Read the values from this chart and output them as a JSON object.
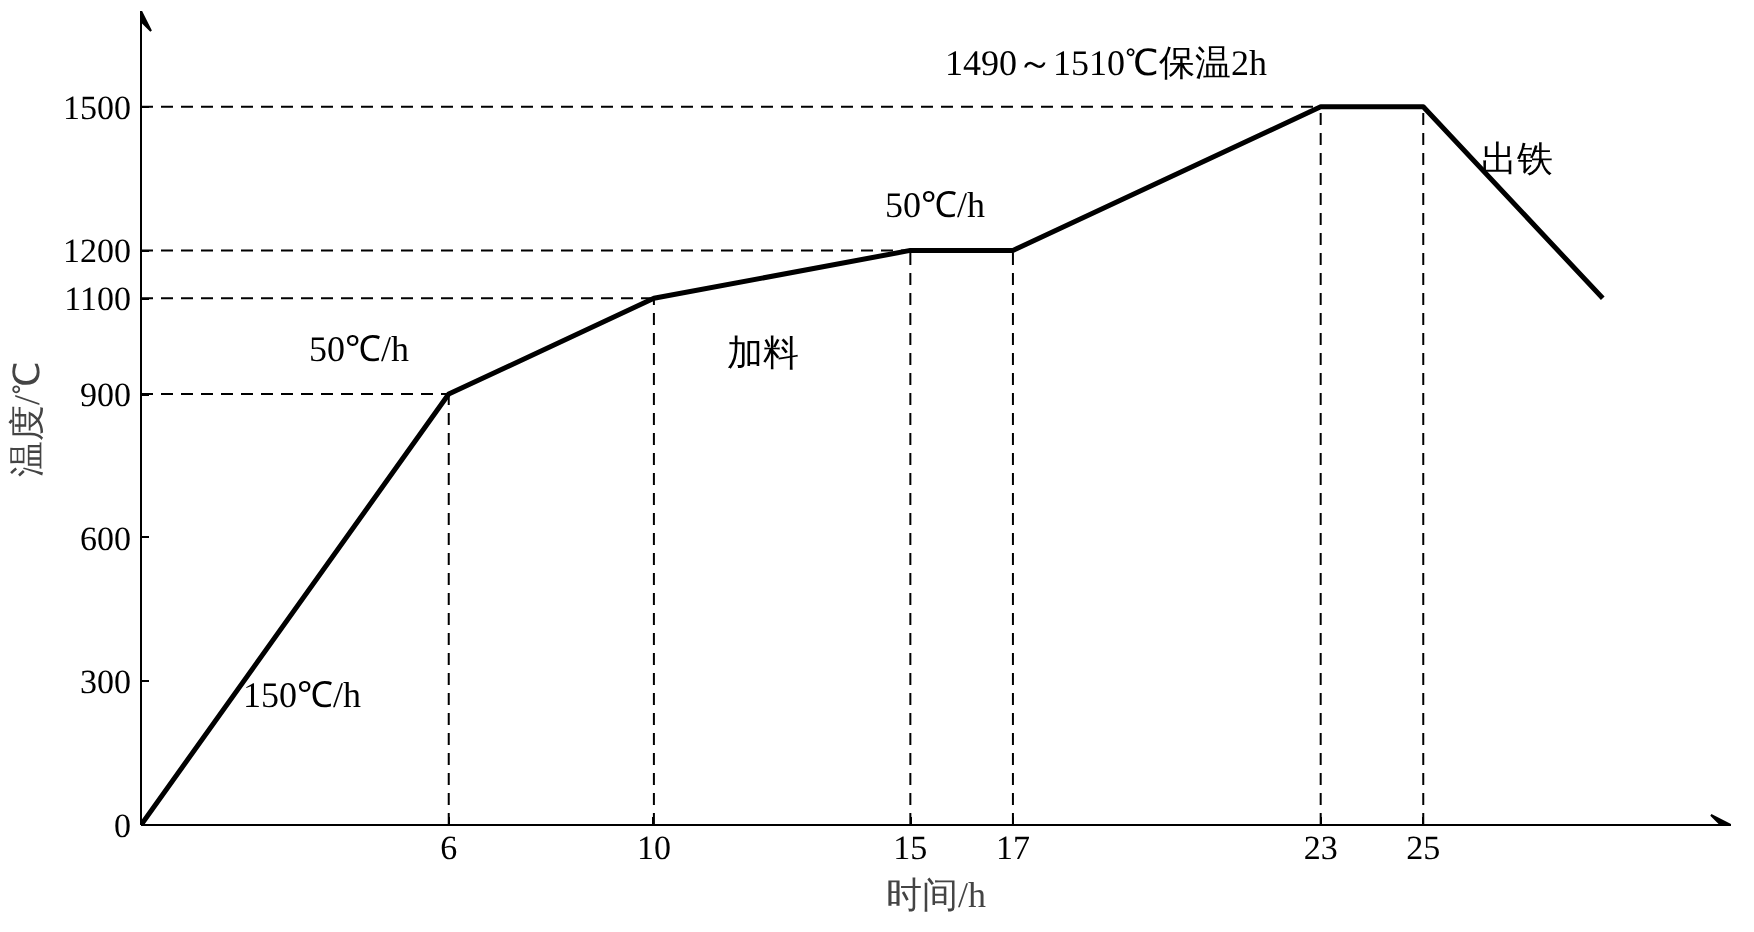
{
  "chart_data": {
    "type": "line",
    "xlabel": "时间/h",
    "ylabel": "温度/℃",
    "x": [
      0,
      6,
      10,
      15,
      17,
      23,
      25,
      28.5
    ],
    "series": [
      {
        "color": "#000000",
        "values": [
          0,
          900,
          1100,
          1200,
          1200,
          1500,
          1500,
          1100
        ]
      }
    ],
    "xlim": [
      0,
      31
    ],
    "ylim": [
      0,
      1700
    ],
    "xticks": [
      6,
      10,
      15,
      17,
      23,
      25
    ],
    "yticks": [
      0,
      300,
      600,
      900,
      1100,
      1200,
      1500
    ],
    "grid": false,
    "marker": "none",
    "line_style": "solid",
    "ref_lines": [
      {
        "axis": "x",
        "value": 6,
        "line_style": "dashed"
      },
      {
        "axis": "x",
        "value": 10,
        "line_style": "dashed"
      },
      {
        "axis": "x",
        "value": 15,
        "line_style": "dashed"
      },
      {
        "axis": "x",
        "value": 17,
        "line_style": "dashed"
      },
      {
        "axis": "x",
        "value": 23,
        "line_style": "dashed"
      },
      {
        "axis": "x",
        "value": 25,
        "line_style": "dashed"
      },
      {
        "axis": "y",
        "value": 900,
        "line_style": "dashed"
      },
      {
        "axis": "y",
        "value": 1100,
        "line_style": "dashed"
      },
      {
        "axis": "y",
        "value": 1200,
        "line_style": "dashed"
      },
      {
        "axis": "y",
        "value": 1500,
        "line_style": "dashed"
      }
    ],
    "annotations": [
      "150℃/h",
      "50℃/h",
      "加料",
      "50℃/h",
      "1490～1510℃保温2h",
      "出铁"
    ]
  }
}
